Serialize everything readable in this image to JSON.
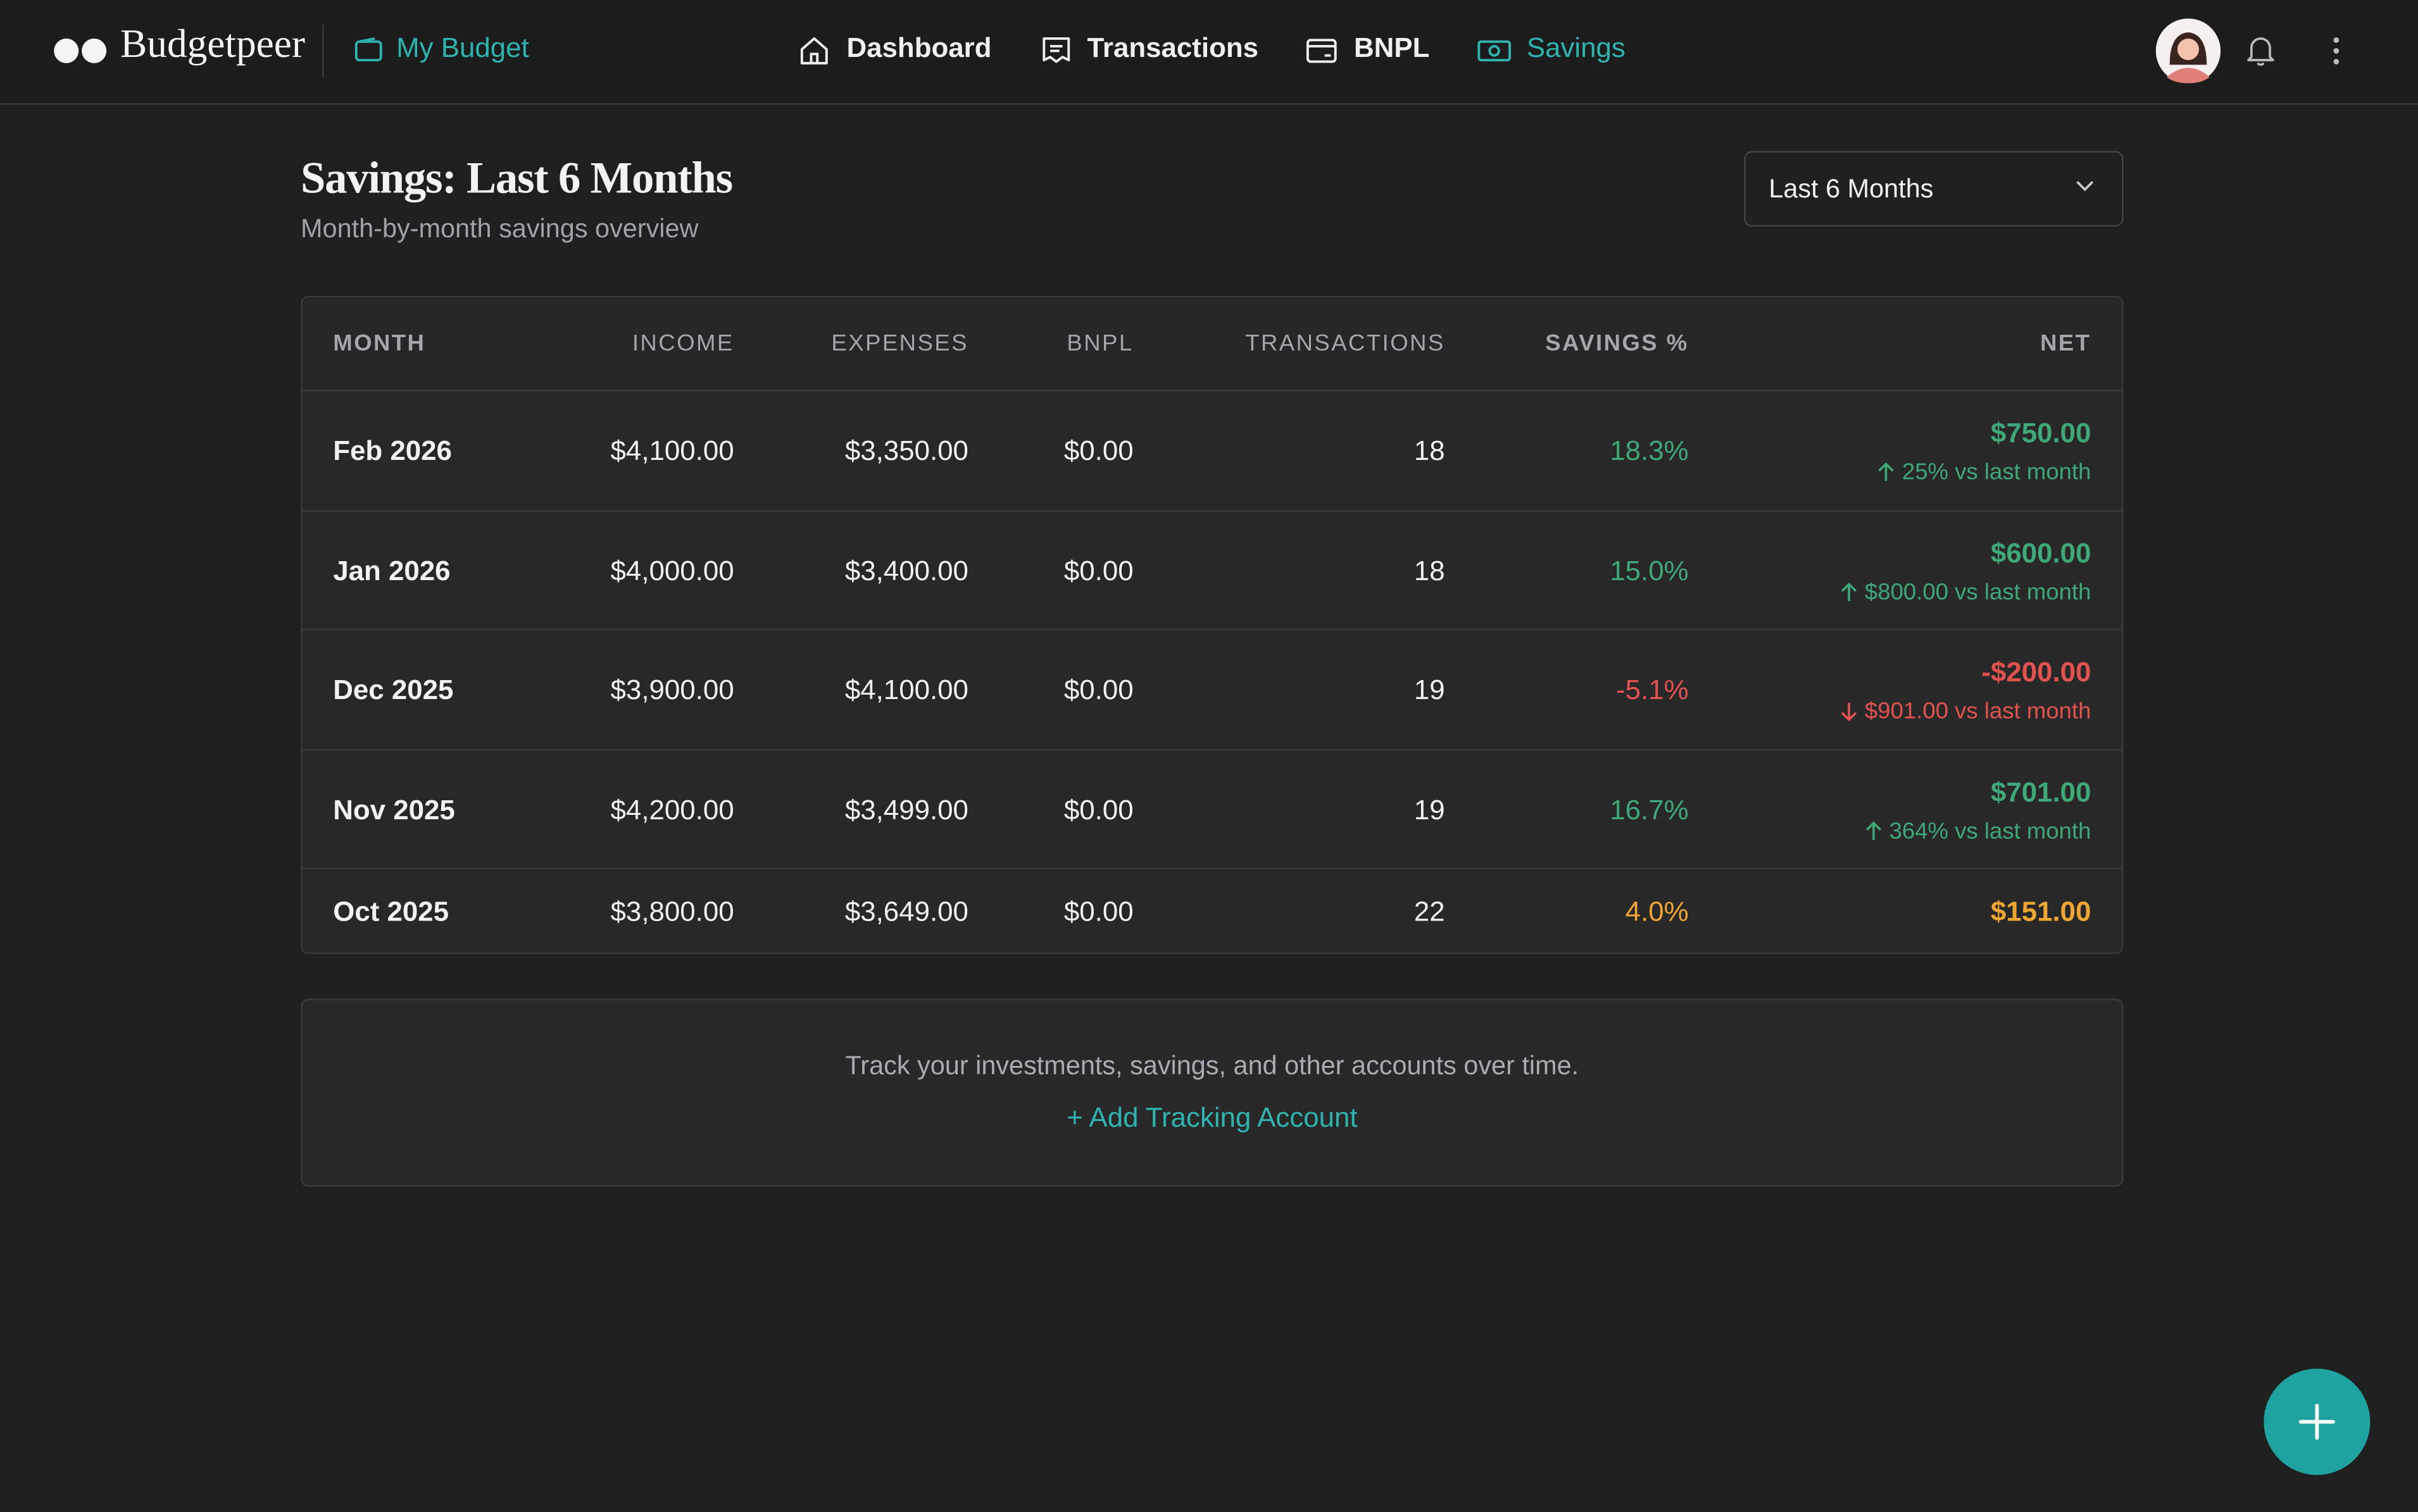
{
  "brand": "Budgetpeer",
  "budget": "My Budget",
  "nav": [
    "Dashboard",
    "Transactions",
    "BNPL",
    "Savings"
  ],
  "header": {
    "title": "Savings: Last 6 Months",
    "subtitle": "Month-by-month savings overview"
  },
  "period_select": "Last 6 Months",
  "table": {
    "columns": [
      "MONTH",
      "INCOME",
      "EXPENSES",
      "BNPL",
      "TRANSACTIONS",
      "SAVINGS %",
      "NET"
    ],
    "rows": [
      {
        "month": "Feb 2026",
        "income": "$4,100.00",
        "expenses": "$3,350.00",
        "bnpl": "$0.00",
        "transactions": "18",
        "savings_pct": "18.3%",
        "net": "$750.00",
        "change": "25% vs last month"
      },
      {
        "month": "Jan 2026",
        "income": "$4,000.00",
        "expenses": "$3,400.00",
        "bnpl": "$0.00",
        "transactions": "18",
        "savings_pct": "15.0%",
        "net": "$600.00",
        "change": "$800.00 vs last month"
      },
      {
        "month": "Dec 2025",
        "income": "$3,900.00",
        "expenses": "$4,100.00",
        "bnpl": "$0.00",
        "transactions": "19",
        "savings_pct": "-5.1%",
        "net": "-$200.00",
        "change": "$901.00 vs last month"
      },
      {
        "month": "Nov 2025",
        "income": "$4,200.00",
        "expenses": "$3,499.00",
        "bnpl": "$0.00",
        "transactions": "19",
        "savings_pct": "16.7%",
        "net": "$701.00",
        "change": "364% vs last month"
      },
      {
        "month": "Oct 2025",
        "income": "$3,800.00",
        "expenses": "$3,649.00",
        "bnpl": "$0.00",
        "transactions": "22",
        "savings_pct": "4.0%",
        "net": "$151.00"
      }
    ]
  },
  "tracking": {
    "text": "Track your investments, savings, and other accounts over time.",
    "action": "+ Add Tracking Account"
  }
}
